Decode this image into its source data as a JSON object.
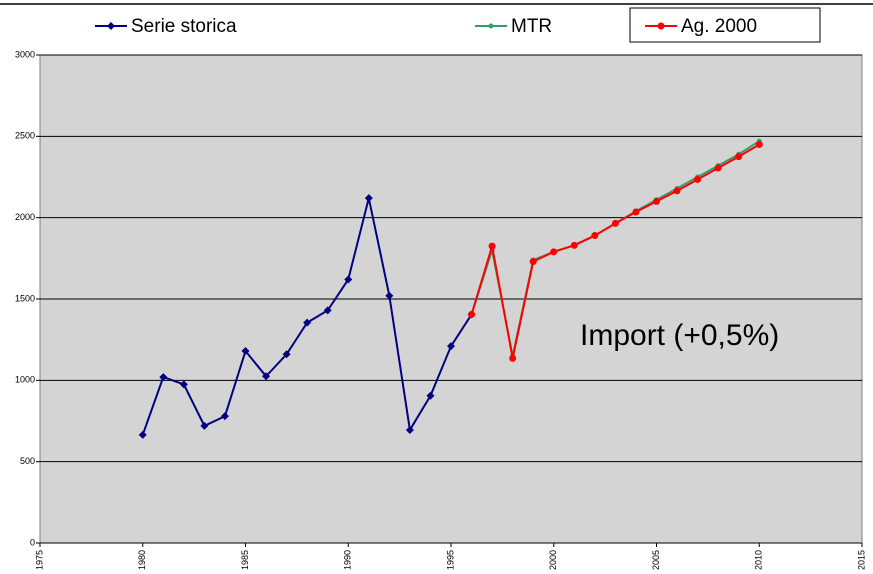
{
  "chart_data": {
    "type": "line",
    "annotation": "Import (+0,5%)",
    "xlim": [
      1975,
      2015
    ],
    "xticks": [
      1975,
      1980,
      1985,
      1990,
      1995,
      2000,
      2005,
      2010,
      2015
    ],
    "ylim": [
      0,
      3000
    ],
    "yticks": [
      0,
      500,
      1000,
      1500,
      2000,
      2500,
      3000
    ],
    "grid": true,
    "series": [
      {
        "name": "Serie storica",
        "color": "#000080",
        "marker": "diamond",
        "x": [
          1980,
          1981,
          1982,
          1983,
          1984,
          1985,
          1986,
          1987,
          1988,
          1989,
          1990,
          1991,
          1992,
          1993,
          1994,
          1995,
          1996
        ],
        "values": [
          665,
          1020,
          975,
          720,
          780,
          1180,
          1025,
          1160,
          1355,
          1430,
          1620,
          2120,
          1520,
          695,
          905,
          1210,
          1405
        ]
      },
      {
        "name": "MTR",
        "color": "#3a9b6b",
        "marker": "dot",
        "x": [
          1996,
          1997,
          1998,
          1999,
          2000,
          2001,
          2002,
          2003,
          2004,
          2005,
          2006,
          2007,
          2008,
          2009,
          2010
        ],
        "values": [
          1405,
          1800,
          1150,
          1740,
          1790,
          1830,
          1890,
          1965,
          2040,
          2110,
          2180,
          2250,
          2320,
          2390,
          2470
        ]
      },
      {
        "name": "Ag. 2000",
        "color": "#ff0000",
        "marker": "circle",
        "x": [
          1996,
          1997,
          1998,
          1999,
          2000,
          2001,
          2002,
          2003,
          2004,
          2005,
          2006,
          2007,
          2008,
          2009,
          2010
        ],
        "values": [
          1405,
          1825,
          1135,
          1730,
          1790,
          1830,
          1890,
          1965,
          2035,
          2100,
          2165,
          2235,
          2305,
          2375,
          2450
        ]
      }
    ]
  }
}
